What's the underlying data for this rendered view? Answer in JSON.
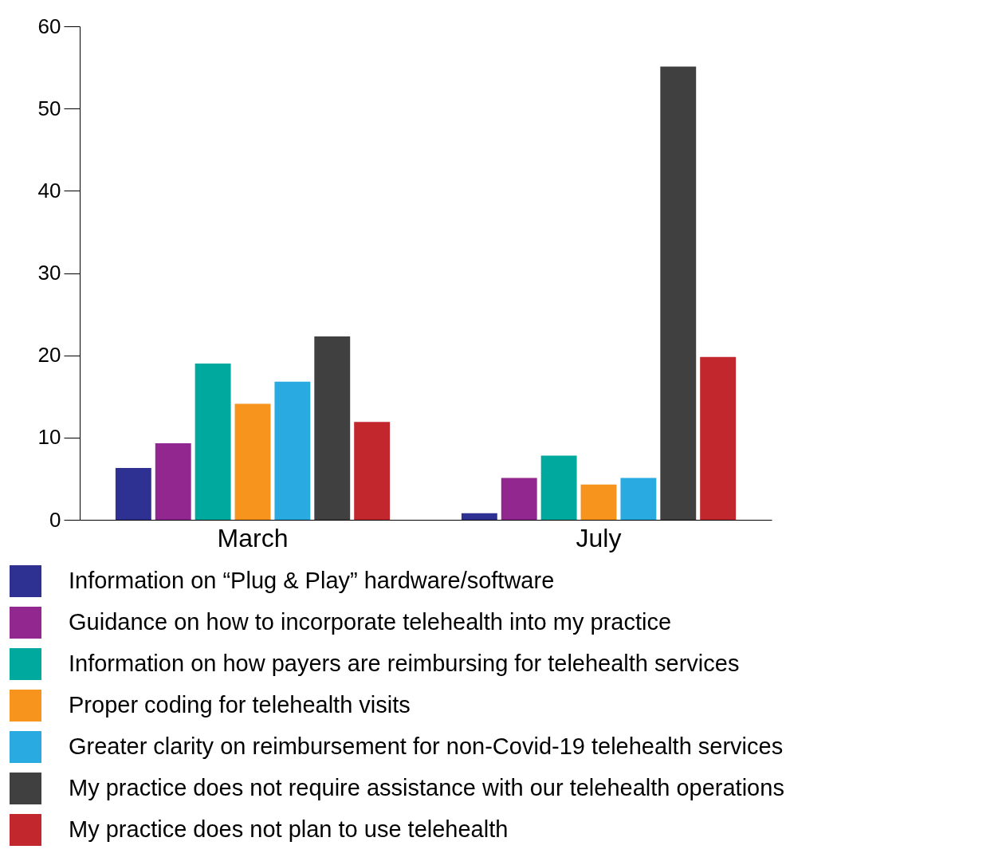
{
  "chart_data": {
    "type": "bar",
    "categories": [
      "March",
      "July"
    ],
    "series": [
      {
        "name": "Information on “Plug & Play” hardware/software",
        "color": "#2e3192",
        "values": [
          6.3,
          0.8
        ]
      },
      {
        "name": "Guidance on how to incorporate telehealth into my practice",
        "color": "#92278f",
        "values": [
          9.3,
          5.1
        ]
      },
      {
        "name": "Information on how payers are reimbursing for telehealth services",
        "color": "#00a99d",
        "values": [
          19.0,
          7.8
        ]
      },
      {
        "name": "Proper coding for telehealth visits",
        "color": "#f7941d",
        "values": [
          14.1,
          4.3
        ]
      },
      {
        "name": "Greater clarity on reimbursement for non-Covid-19 telehealth services",
        "color": "#29abe2",
        "values": [
          16.8,
          5.1
        ]
      },
      {
        "name": "My practice does not require assistance with our telehealth operations",
        "color": "#404040",
        "values": [
          22.3,
          55.1
        ]
      },
      {
        "name": "My practice does not plan to use telehealth",
        "color": "#c1272d",
        "values": [
          11.9,
          19.8
        ]
      }
    ],
    "ylim": [
      0,
      60
    ],
    "yticks": [
      0,
      10,
      20,
      30,
      40,
      50,
      60
    ],
    "grid": false,
    "legend": "bottom"
  }
}
